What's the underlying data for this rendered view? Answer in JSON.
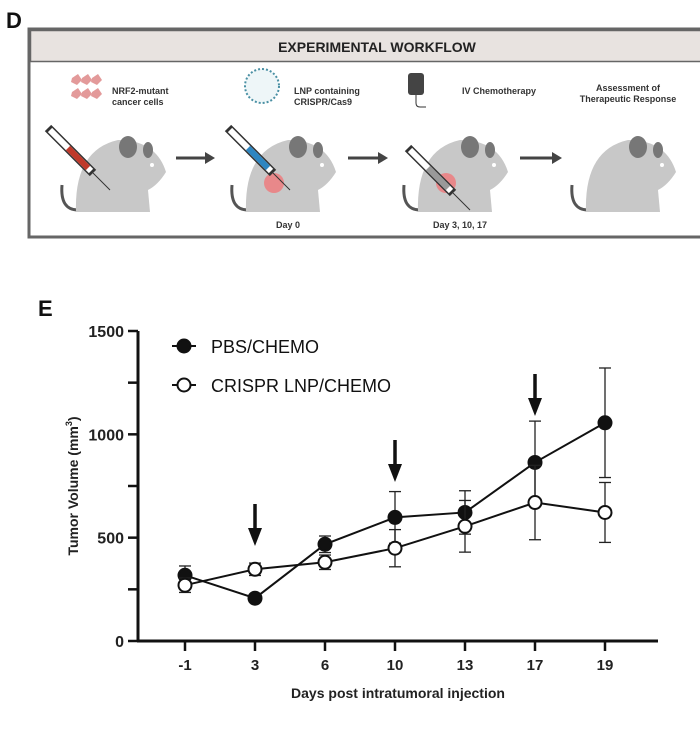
{
  "panels": {
    "d": "D",
    "e": "E"
  },
  "workflow": {
    "title": "EXPERIMENTAL WORKFLOW",
    "steps": [
      {
        "label_lines": [
          "NRF2-mutant",
          "cancer cells"
        ],
        "caption": ""
      },
      {
        "label_lines": [
          "LNP containing",
          "CRISPR/Cas9"
        ],
        "caption": "Day 0"
      },
      {
        "label_lines": [
          "IV Chemotherapy"
        ],
        "caption": "Day 3, 10, 17"
      },
      {
        "label_lines": [
          "Assessment of",
          "Therapeutic Response"
        ],
        "caption": ""
      }
    ],
    "colors": {
      "mouse": "#c8c8c8",
      "tumor": "#e8888a",
      "title_bg": "#e8e3e0",
      "border": "#555555"
    }
  },
  "chart_data": {
    "type": "line",
    "xlabel": "Days post intratumoral injection",
    "ylabel": "Tumor Volume (mm",
    "ylabel_sup": "3",
    "ylabel_end": ")",
    "categories": [
      "-1",
      "3",
      "6",
      "10",
      "13",
      "17",
      "19"
    ],
    "ylim": [
      0,
      1500
    ],
    "yticks": [
      "0",
      "500",
      "1000",
      "1500"
    ],
    "yminor_step": 250,
    "grid": false,
    "legend_position": "top-left",
    "series": [
      {
        "name": "PBS/CHEMO",
        "marker": "filled-circle",
        "values": [
          318,
          207,
          468,
          598,
          622,
          864,
          1056
        ],
        "errors": [
          45,
          10,
          40,
          125,
          105,
          200,
          265
        ]
      },
      {
        "name": "CRISPR LNP/CHEMO",
        "marker": "open-circle",
        "values": [
          270,
          347,
          381,
          449,
          555,
          670,
          622
        ],
        "errors": [
          35,
          30,
          35,
          90,
          125,
          180,
          145
        ]
      }
    ],
    "annotations": [
      {
        "type": "arrow-down",
        "x": "3"
      },
      {
        "type": "arrow-down",
        "x": "10"
      },
      {
        "type": "arrow-down",
        "x": "17"
      }
    ]
  }
}
